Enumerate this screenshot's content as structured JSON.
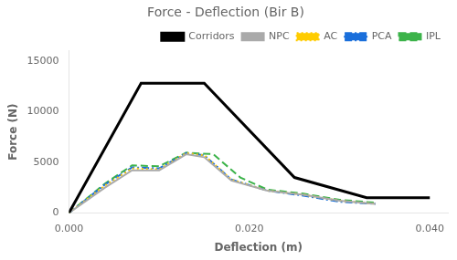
{
  "chart_data": {
    "type": "line",
    "title": "Force - Deflection (Bir B)",
    "x_label": "Deflection (m)",
    "y_label": "Force (N)",
    "xlim": [
      0.0,
      0.042
    ],
    "ylim": [
      0,
      16000
    ],
    "xticks": [
      {
        "value": 0.0,
        "label": "0.000"
      },
      {
        "value": 0.02,
        "label": "0.020"
      },
      {
        "value": 0.04,
        "label": "0.040"
      }
    ],
    "yticks": [
      0,
      5000,
      10000,
      15000
    ],
    "grid": false,
    "legend": "upper right",
    "series": [
      {
        "name": "Corridors",
        "color": "#000000",
        "line_style": "solid",
        "x": [
          0.0,
          0.008,
          0.015,
          0.025,
          0.033,
          0.04
        ],
        "values": [
          0,
          12800,
          12800,
          3500,
          1500,
          1500
        ]
      },
      {
        "name": "NPC",
        "color": "#aaaaaa",
        "line_style": "solid",
        "x": [
          0.0,
          0.004,
          0.007,
          0.01,
          0.013,
          0.015,
          0.018,
          0.022,
          0.026,
          0.03,
          0.034
        ],
        "values": [
          0,
          2500,
          4200,
          4200,
          5800,
          5500,
          3200,
          2200,
          1800,
          1200,
          900
        ]
      },
      {
        "name": "AC",
        "color": "#ffcc00",
        "line_style": "dotted",
        "x": [
          0.0,
          0.004,
          0.007,
          0.01,
          0.013,
          0.015,
          0.018,
          0.022,
          0.026,
          0.03,
          0.034
        ],
        "values": [
          0,
          2700,
          4400,
          4300,
          5900,
          5700,
          3300,
          2200,
          1800,
          1200,
          900
        ]
      },
      {
        "name": "PCA",
        "color": "#1a6fdb",
        "line_style": "dashdot",
        "x": [
          0.0,
          0.004,
          0.007,
          0.01,
          0.013,
          0.015,
          0.018,
          0.022,
          0.026,
          0.03,
          0.034
        ],
        "values": [
          0,
          2800,
          4500,
          4400,
          5900,
          5700,
          3300,
          2200,
          1700,
          1100,
          900
        ]
      },
      {
        "name": "IPL",
        "color": "#3cb34a",
        "line_style": "dashed",
        "x": [
          0.0,
          0.004,
          0.007,
          0.01,
          0.013,
          0.016,
          0.019,
          0.022,
          0.026,
          0.03,
          0.034
        ],
        "values": [
          0,
          2900,
          4700,
          4600,
          5950,
          5800,
          3500,
          2300,
          1900,
          1300,
          1000
        ]
      }
    ]
  }
}
